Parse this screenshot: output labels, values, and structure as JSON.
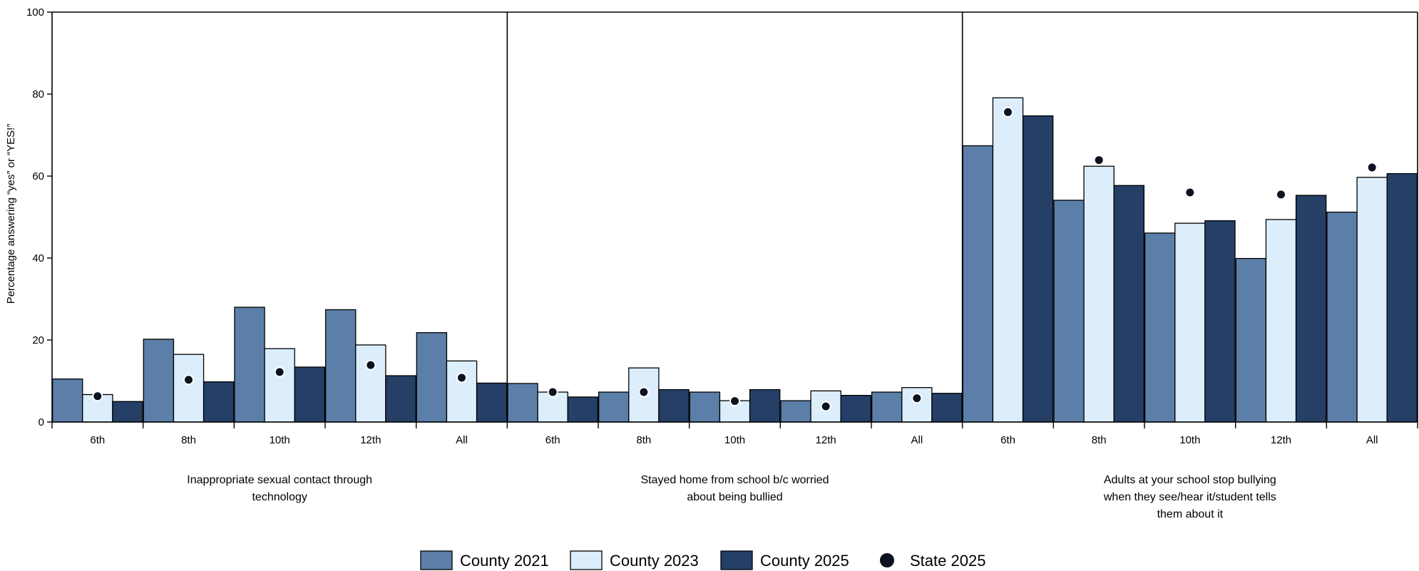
{
  "chart_data": {
    "type": "bar",
    "ylabel": "Percentage answering “yes” or “YES!”",
    "ylim": [
      0,
      100
    ],
    "yticks": [
      0,
      20,
      40,
      60,
      80,
      100
    ],
    "grid": false,
    "legend_position": "bottom-center",
    "groups": [
      {
        "label": "Inappropriate sexual contact through technology",
        "label_lines": [
          "Inappropriate sexual contact through",
          "technology"
        ]
      },
      {
        "label": "Stayed home from school b/c worried about being bullied",
        "label_lines": [
          "Stayed home from school b/c worried",
          "about being bullied"
        ]
      },
      {
        "label": "Adults at your school stop bullying when they see/hear it/student tells them about it",
        "label_lines": [
          "Adults at your school stop bullying",
          "when they see/hear it/student tells",
          "them about it"
        ]
      }
    ],
    "categories": [
      "6th",
      "8th",
      "10th",
      "12th",
      "All"
    ],
    "series": [
      {
        "name": "County 2021",
        "kind": "bar",
        "color": "#5b7fa8",
        "values": [
          [
            10.5,
            20.2,
            28.0,
            27.4,
            21.8
          ],
          [
            9.4,
            7.3,
            7.3,
            5.2,
            7.3
          ],
          [
            67.4,
            54.1,
            46.1,
            39.9,
            51.2
          ]
        ]
      },
      {
        "name": "County 2023",
        "kind": "bar",
        "color": "#dcedfb",
        "values": [
          [
            6.7,
            16.5,
            17.9,
            18.8,
            14.9
          ],
          [
            7.3,
            13.2,
            5.2,
            7.6,
            8.4
          ],
          [
            79.1,
            62.4,
            48.5,
            49.4,
            59.7
          ]
        ]
      },
      {
        "name": "County 2025",
        "kind": "bar",
        "color": "#253f66",
        "values": [
          [
            5.0,
            9.8,
            13.4,
            11.3,
            9.5
          ],
          [
            6.1,
            7.9,
            7.9,
            6.5,
            7.0
          ],
          [
            74.7,
            57.7,
            49.1,
            55.3,
            60.6
          ]
        ]
      },
      {
        "name": "State 2025",
        "kind": "dot",
        "color": "#0b1220",
        "values": [
          [
            6.3,
            10.3,
            12.2,
            13.9,
            10.8
          ],
          [
            7.3,
            7.3,
            5.1,
            3.8,
            5.8
          ],
          [
            75.6,
            63.9,
            56.0,
            55.5,
            62.1
          ]
        ]
      }
    ]
  }
}
